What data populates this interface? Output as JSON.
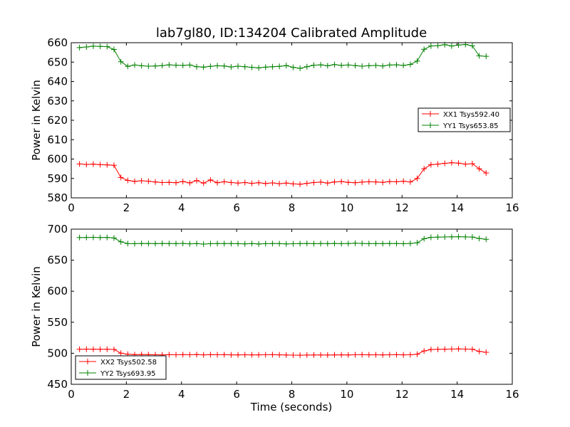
{
  "chart_data": [
    {
      "type": "line",
      "title": "lab7gl80, ID:134204 Calibrated Amplitude",
      "xlabel": "",
      "ylabel": "Power in Kelvin",
      "xlim": [
        0,
        16
      ],
      "ylim": [
        580,
        660
      ],
      "xticks": [
        "0",
        "2",
        "4",
        "6",
        "8",
        "10",
        "12",
        "14",
        "16"
      ],
      "yticks": [
        "580",
        "590",
        "600",
        "610",
        "620",
        "630",
        "640",
        "650",
        "660"
      ],
      "grid": false,
      "legend_position": "center-right",
      "x": [
        0.3,
        0.55,
        0.8,
        1.05,
        1.3,
        1.55,
        1.8,
        2.05,
        2.3,
        2.55,
        2.8,
        3.05,
        3.3,
        3.55,
        3.8,
        4.05,
        4.3,
        4.55,
        4.8,
        5.05,
        5.3,
        5.55,
        5.8,
        6.05,
        6.3,
        6.55,
        6.8,
        7.05,
        7.3,
        7.55,
        7.8,
        8.05,
        8.3,
        8.55,
        8.8,
        9.05,
        9.3,
        9.55,
        9.8,
        10.05,
        10.3,
        10.55,
        10.8,
        11.05,
        11.3,
        11.55,
        11.8,
        12.05,
        12.3,
        12.55,
        12.8,
        13.05,
        13.3,
        13.55,
        13.8,
        14.05,
        14.3,
        14.55,
        14.8,
        15.05
      ],
      "series": [
        {
          "name": "XX1 Tsys592.40",
          "color": "#ff0000",
          "values": [
            597.5,
            597.2,
            597.4,
            597.1,
            597.0,
            596.8,
            590.5,
            589.0,
            588.5,
            588.8,
            588.6,
            588.2,
            587.9,
            588.0,
            587.8,
            588.4,
            587.7,
            588.9,
            587.6,
            589.2,
            587.8,
            588.3,
            587.9,
            587.6,
            587.9,
            587.5,
            587.8,
            587.4,
            587.7,
            587.3,
            587.6,
            587.2,
            587.0,
            587.5,
            587.9,
            588.1,
            587.6,
            588.2,
            588.4,
            588.0,
            587.8,
            588.1,
            588.3,
            588.2,
            588.0,
            588.4,
            588.3,
            588.6,
            588.2,
            590.0,
            595.0,
            597.1,
            597.4,
            597.8,
            598.1,
            597.9,
            597.4,
            597.6,
            595.0,
            592.8
          ]
        },
        {
          "name": "YY1 Tsys653.85",
          "color": "#008000",
          "values": [
            657.5,
            657.8,
            658.2,
            658.1,
            658.0,
            656.5,
            650.2,
            647.8,
            648.5,
            648.1,
            647.9,
            648.0,
            648.2,
            648.6,
            648.4,
            648.3,
            648.5,
            647.6,
            647.4,
            647.8,
            648.1,
            648.0,
            647.5,
            647.9,
            647.6,
            647.3,
            647.0,
            647.4,
            647.6,
            647.8,
            648.2,
            647.3,
            646.8,
            647.6,
            648.4,
            648.6,
            648.1,
            648.7,
            648.3,
            648.5,
            648.2,
            647.9,
            648.1,
            648.3,
            648.0,
            648.5,
            648.6,
            648.3,
            648.8,
            650.5,
            656.6,
            658.3,
            658.5,
            659.0,
            658.3,
            658.8,
            659.1,
            658.4,
            653.2,
            653.0
          ]
        }
      ]
    },
    {
      "type": "line",
      "title": "",
      "xlabel": "Time (seconds)",
      "ylabel": "Power in Kelvin",
      "xlim": [
        0,
        16
      ],
      "ylim": [
        450,
        700
      ],
      "xticks": [
        "0",
        "2",
        "4",
        "6",
        "8",
        "10",
        "12",
        "14",
        "16"
      ],
      "yticks": [
        "450",
        "500",
        "550",
        "600",
        "650",
        "700"
      ],
      "grid": false,
      "legend_position": "lower-left",
      "x": [
        0.3,
        0.55,
        0.8,
        1.05,
        1.3,
        1.55,
        1.8,
        2.05,
        2.3,
        2.55,
        2.8,
        3.05,
        3.3,
        3.55,
        3.8,
        4.05,
        4.3,
        4.55,
        4.8,
        5.05,
        5.3,
        5.55,
        5.8,
        6.05,
        6.3,
        6.55,
        6.8,
        7.05,
        7.3,
        7.55,
        7.8,
        8.05,
        8.3,
        8.55,
        8.8,
        9.05,
        9.3,
        9.55,
        9.8,
        10.05,
        10.3,
        10.55,
        10.8,
        11.05,
        11.3,
        11.55,
        11.8,
        12.05,
        12.3,
        12.55,
        12.8,
        13.05,
        13.3,
        13.55,
        13.8,
        14.05,
        14.3,
        14.55,
        14.8,
        15.05
      ],
      "series": [
        {
          "name": "XX2 Tsys502.58",
          "color": "#ff0000",
          "values": [
            506.5,
            506.6,
            506.5,
            506.4,
            506.5,
            506.2,
            500.2,
            498.4,
            497.8,
            498.0,
            497.9,
            497.6,
            497.5,
            497.7,
            497.6,
            497.8,
            497.6,
            497.9,
            497.5,
            497.7,
            497.6,
            497.8,
            497.5,
            497.4,
            497.6,
            497.4,
            497.5,
            497.6,
            497.7,
            497.5,
            497.2,
            497.0,
            496.9,
            497.1,
            497.2,
            497.3,
            497.1,
            497.4,
            497.5,
            497.3,
            497.6,
            497.7,
            497.5,
            497.6,
            497.4,
            497.6,
            497.7,
            497.5,
            497.6,
            498.5,
            503.8,
            506.0,
            506.4,
            506.5,
            506.8,
            507.0,
            506.7,
            506.5,
            503.0,
            501.6
          ]
        },
        {
          "name": "YY2 Tsys693.95",
          "color": "#008000",
          "values": [
            686.5,
            686.6,
            686.8,
            686.5,
            686.7,
            685.8,
            679.6,
            676.8,
            676.6,
            676.9,
            676.8,
            676.7,
            676.9,
            676.8,
            676.7,
            676.9,
            676.4,
            676.8,
            675.9,
            676.6,
            676.8,
            676.7,
            676.8,
            676.6,
            676.3,
            676.8,
            676.1,
            676.6,
            676.8,
            676.7,
            676.2,
            676.5,
            676.7,
            676.9,
            676.6,
            676.8,
            676.7,
            676.9,
            676.6,
            676.8,
            677.3,
            676.9,
            676.6,
            676.8,
            676.7,
            676.9,
            676.8,
            676.6,
            676.9,
            678.0,
            684.5,
            686.8,
            687.2,
            687.4,
            687.6,
            687.8,
            687.5,
            687.3,
            685.0,
            683.6
          ]
        }
      ]
    }
  ]
}
